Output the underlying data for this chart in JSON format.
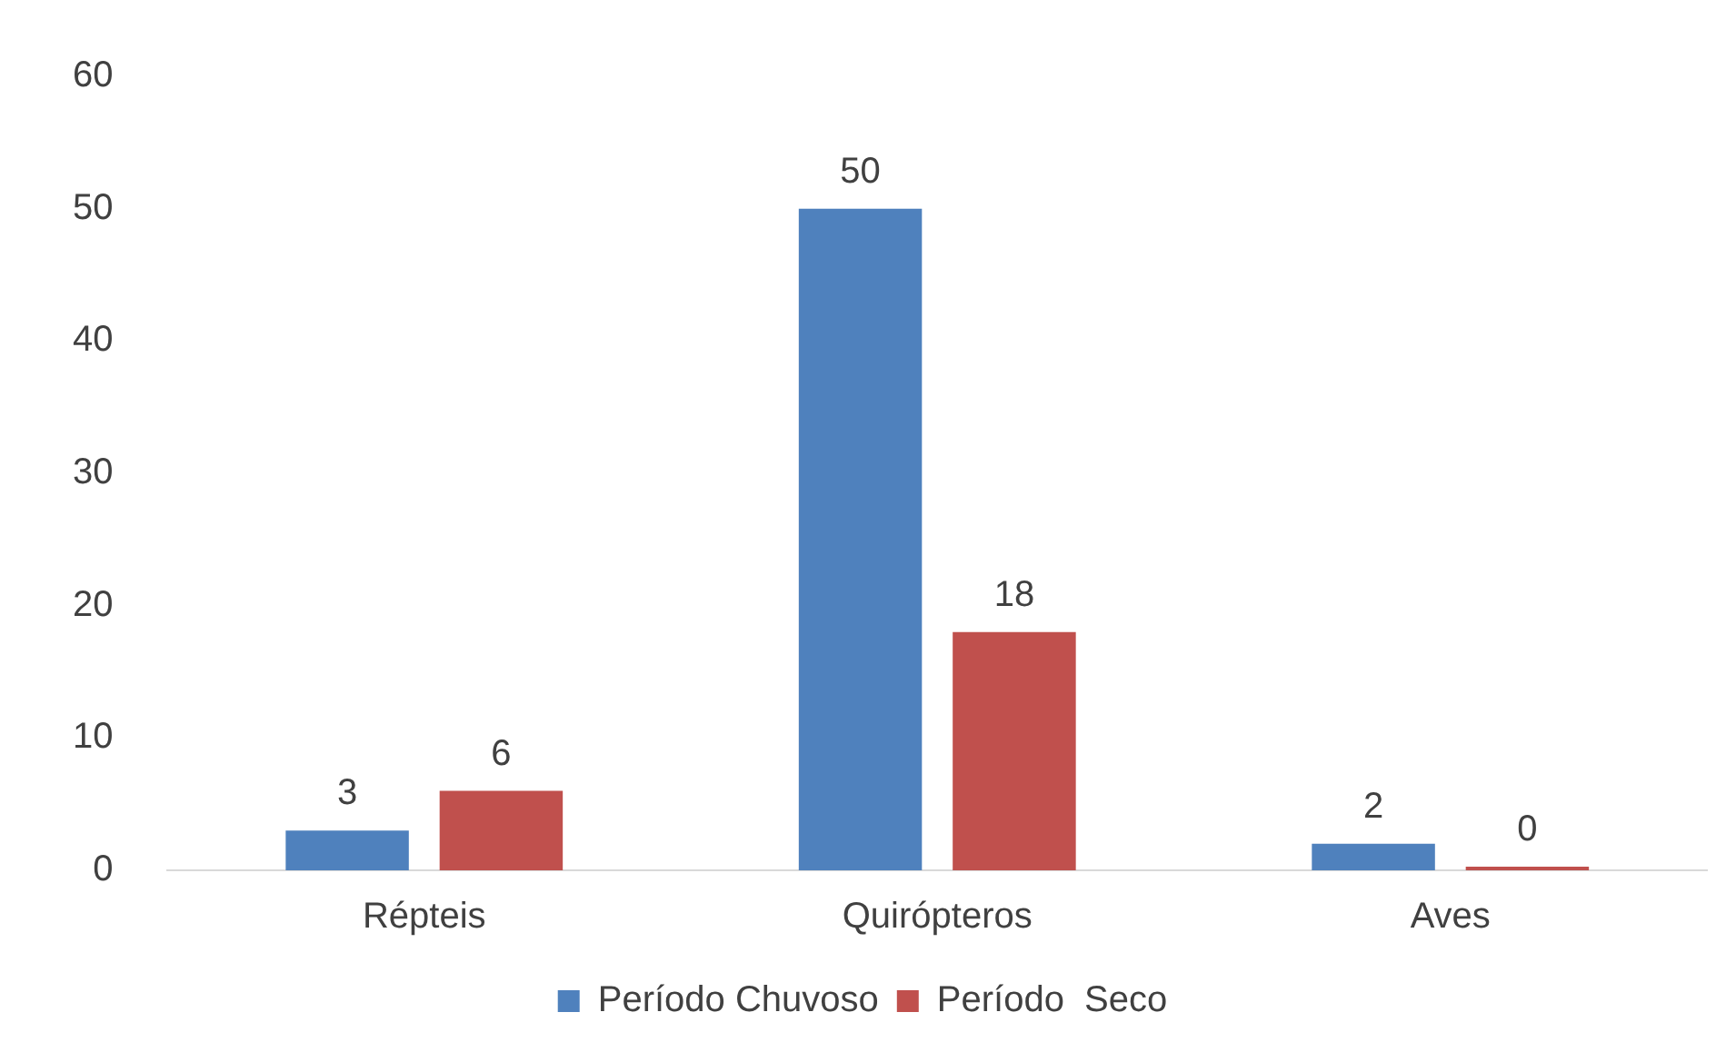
{
  "chart_data": {
    "type": "bar",
    "categories": [
      "Répteis",
      "Quirópteros",
      "Aves"
    ],
    "series": [
      {
        "name": "Período Chuvoso",
        "color": "#4f81bd",
        "values": [
          3,
          50,
          2
        ]
      },
      {
        "name": "Período  Seco",
        "color": "#c0504d",
        "values": [
          6,
          18,
          0
        ]
      }
    ],
    "ylim": [
      0,
      60
    ],
    "yticks": [
      0,
      10,
      20,
      30,
      40,
      50,
      60
    ],
    "grid": false,
    "legend": "bottom",
    "data_labels": true
  }
}
